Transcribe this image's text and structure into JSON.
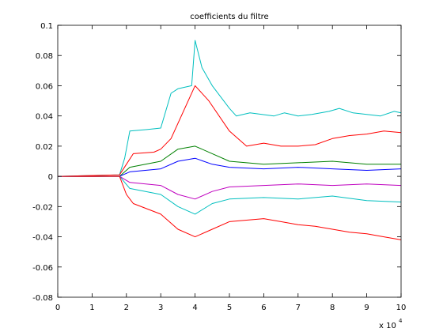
{
  "chart_data": {
    "type": "line",
    "title": "coefficients du filtre",
    "xlabel": "",
    "ylabel": "",
    "x_multiplier_label": "x 10",
    "x_multiplier_exponent": "4",
    "xlim": [
      0,
      10
    ],
    "ylim": [
      -0.08,
      0.1
    ],
    "xticks": [
      "0",
      "1",
      "2",
      "3",
      "4",
      "5",
      "6",
      "7",
      "8",
      "9",
      "10"
    ],
    "yticks": [
      "0.1",
      "0.08",
      "0.06",
      "0.04",
      "0.02",
      "0",
      "-0.02",
      "-0.04",
      "-0.06",
      "-0.08"
    ],
    "grid": false,
    "legend": "none",
    "palette": [
      "#0000ff",
      "#008000",
      "#ff0000",
      "#00bfbf",
      "#bf00bf",
      "#bfbf00",
      "#404040"
    ],
    "series": [
      {
        "color": "#00bfbf",
        "x": [
          0,
          1.8,
          1.95,
          2.1,
          2.6,
          3.0,
          3.3,
          3.5,
          3.9,
          4.0,
          4.2,
          4.5,
          5.0,
          5.2,
          5.6,
          6.3,
          6.6,
          7.0,
          7.4,
          7.9,
          8.2,
          8.6,
          9.0,
          9.4,
          9.8,
          10
        ],
        "y": [
          0,
          0.001,
          0.012,
          0.03,
          0.031,
          0.032,
          0.055,
          0.058,
          0.06,
          0.09,
          0.072,
          0.06,
          0.045,
          0.04,
          0.042,
          0.04,
          0.042,
          0.04,
          0.041,
          0.043,
          0.045,
          0.042,
          0.041,
          0.04,
          0.043,
          0.042
        ]
      },
      {
        "color": "#ff0000",
        "x": [
          0,
          1.8,
          2.0,
          2.2,
          2.8,
          3.0,
          3.3,
          3.8,
          4.0,
          4.4,
          5.0,
          5.5,
          6.0,
          6.5,
          7.0,
          7.5,
          8.0,
          8.5,
          9.0,
          9.5,
          10
        ],
        "y": [
          0,
          0.001,
          0.008,
          0.015,
          0.016,
          0.018,
          0.025,
          0.05,
          0.06,
          0.05,
          0.03,
          0.02,
          0.022,
          0.02,
          0.02,
          0.021,
          0.025,
          0.027,
          0.028,
          0.03,
          0.029
        ]
      },
      {
        "color": "#008000",
        "x": [
          0,
          1.8,
          2.1,
          3.0,
          3.5,
          4.0,
          4.5,
          5.0,
          6.0,
          7.0,
          8.0,
          9.0,
          10
        ],
        "y": [
          0,
          0.0,
          0.006,
          0.01,
          0.018,
          0.02,
          0.015,
          0.01,
          0.008,
          0.009,
          0.01,
          0.008,
          0.008
        ]
      },
      {
        "color": "#0000ff",
        "x": [
          0,
          1.8,
          2.1,
          3.0,
          3.5,
          4.0,
          4.5,
          5.0,
          6.0,
          7.0,
          8.0,
          9.0,
          10
        ],
        "y": [
          0,
          0.0,
          0.003,
          0.005,
          0.01,
          0.012,
          0.008,
          0.006,
          0.005,
          0.006,
          0.005,
          0.004,
          0.005
        ]
      },
      {
        "color": "#bf00bf",
        "x": [
          0,
          1.8,
          2.1,
          3.0,
          3.5,
          4.0,
          4.5,
          5.0,
          6.0,
          7.0,
          8.0,
          9.0,
          10
        ],
        "y": [
          0,
          0.0,
          -0.004,
          -0.006,
          -0.012,
          -0.015,
          -0.01,
          -0.007,
          -0.006,
          -0.005,
          -0.006,
          -0.005,
          -0.006
        ]
      },
      {
        "color": "#00bfbf",
        "x": [
          0,
          1.8,
          2.1,
          3.0,
          3.5,
          4.0,
          4.5,
          5.0,
          6.0,
          7.0,
          8.0,
          9.0,
          10
        ],
        "y": [
          0,
          0.0,
          -0.008,
          -0.012,
          -0.02,
          -0.025,
          -0.018,
          -0.015,
          -0.014,
          -0.015,
          -0.013,
          -0.016,
          -0.017
        ]
      },
      {
        "color": "#ff0000",
        "x": [
          0,
          1.8,
          2.0,
          2.2,
          3.0,
          3.5,
          4.0,
          4.5,
          5.0,
          6.0,
          6.5,
          7.0,
          7.5,
          8.0,
          8.5,
          9.0,
          9.5,
          10
        ],
        "y": [
          0,
          0.0,
          -0.012,
          -0.018,
          -0.025,
          -0.035,
          -0.04,
          -0.035,
          -0.03,
          -0.028,
          -0.03,
          -0.032,
          -0.033,
          -0.035,
          -0.037,
          -0.038,
          -0.04,
          -0.042
        ]
      }
    ]
  }
}
